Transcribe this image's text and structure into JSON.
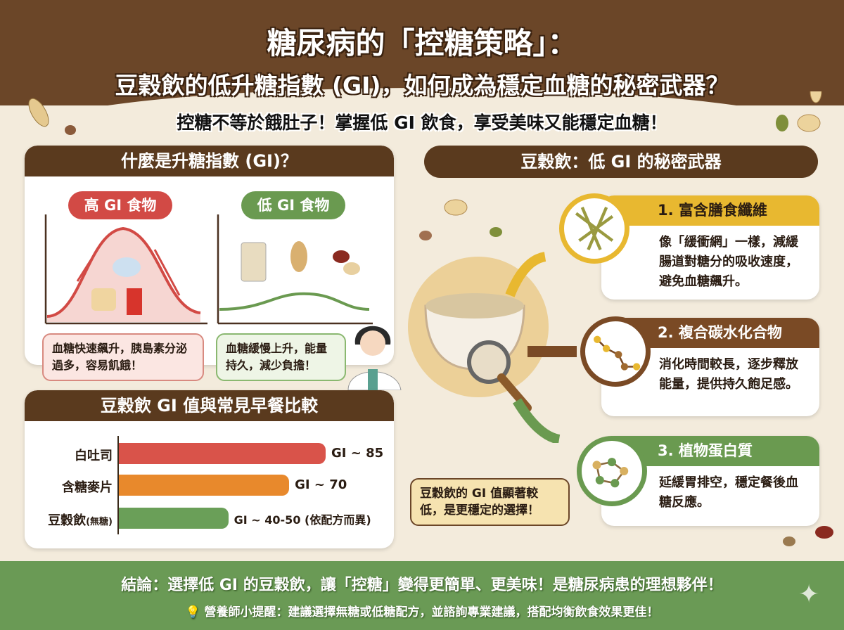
{
  "header": {
    "title_line1": "糖尿病的「控糖策略」：",
    "title_line2": "豆穀飲的低升糖指數 (GI)，如何成為穩定血糖的秘密武器？",
    "subtitle": "控糖不等於餓肚子！掌握低 GI 飲食，享受美味又能穩定血糖！"
  },
  "gi_panel": {
    "title": "什麼是升糖指數 (GI)？",
    "high": {
      "label": "高 GI 食物",
      "note": "血糖快速飆升，胰島素分泌過多，容易飢餓！",
      "color": "#d24a45"
    },
    "low": {
      "label": "低 GI 食物",
      "note": "血糖緩慢上升，能量持久，減少負擔！",
      "color": "#6a9a50"
    }
  },
  "chart_data": {
    "type": "bar",
    "title": "豆穀飲 GI 值與常見早餐比較",
    "orientation": "horizontal",
    "categories": [
      "白吐司",
      "含糖麥片",
      "豆穀飲"
    ],
    "category_notes": [
      "",
      "",
      "(無糖)"
    ],
    "values": [
      85,
      70,
      45
    ],
    "value_ranges": [
      [
        85,
        85
      ],
      [
        70,
        70
      ],
      [
        40,
        50
      ]
    ],
    "data_labels": [
      "GI ~ 85",
      "GI ~ 70",
      "GI ~ 40-50 (依配方而異)"
    ],
    "colors": [
      "#d9534a",
      "#e8892c",
      "#6a9f58"
    ],
    "xlim": [
      0,
      100
    ]
  },
  "callout": "豆穀飲的 GI 值顯著較低，是更穩定的選擇！",
  "right": {
    "title": "豆穀飲：低 GI 的秘密武器",
    "cards": [
      {
        "title": "1. 富含膳食纖維",
        "body": "像「緩衝網」一樣，減緩腸道對糖分的吸收速度，避免血糖飆升。",
        "color": "#e8b830",
        "icon": "fiber-net-icon"
      },
      {
        "title": "2. 複合碳水化合物",
        "body": "消化時間較長，逐步釋放能量，提供持久飽足感。",
        "color": "#7a4a25",
        "icon": "carb-chain-icon"
      },
      {
        "title": "3. 植物蛋白質",
        "body": "延緩胃排空，穩定餐後血糖反應。",
        "color": "#6a9a50",
        "icon": "protein-molecule-icon"
      }
    ]
  },
  "footer": {
    "conclusion": "結論：選擇低 GI 的豆穀飲，讓「控糖」變得更簡單、更美味！是糖尿病患的理想夥伴！",
    "tip": "營養師小提醒：建議選擇無糖或低糖配方，並諮詢專業建議，搭配均衡飲食效果更佳！"
  }
}
